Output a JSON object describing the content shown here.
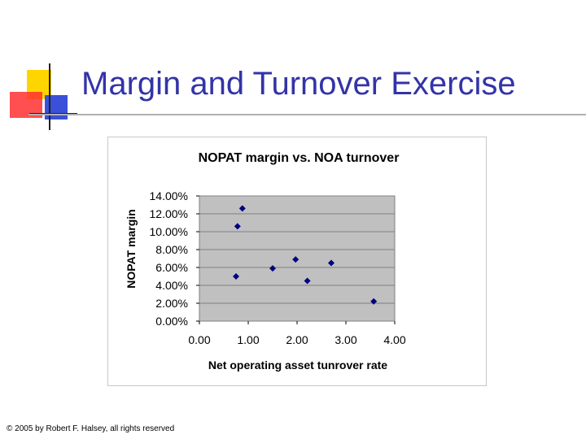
{
  "slide": {
    "title": "Margin and Turnover Exercise",
    "footer": "© 2005 by Robert F. Halsey, all rights reserved",
    "accent_colors": {
      "title": "#3333a8",
      "yellow": "#ffd500",
      "red": "#ff2a2a",
      "blue": "#3a50d8"
    }
  },
  "chart_data": {
    "type": "scatter",
    "title": "NOPAT margin vs. NOA turnover",
    "xlabel": "Net operating asset tunrover rate",
    "ylabel": "NOPAT margin",
    "xlim": [
      0,
      4
    ],
    "ylim": [
      0,
      0.14
    ],
    "x_ticks": [
      "0.00",
      "1.00",
      "2.00",
      "3.00",
      "4.00"
    ],
    "y_ticks": [
      "0.00%",
      "2.00%",
      "4.00%",
      "6.00%",
      "8.00%",
      "10.00%",
      "12.00%",
      "14.00%"
    ],
    "grid": true,
    "plot_background": "#c0c0c0",
    "marker": "diamond",
    "marker_color": "#000080",
    "points": [
      {
        "x": 0.75,
        "y": 0.05
      },
      {
        "x": 0.78,
        "y": 0.106
      },
      {
        "x": 0.88,
        "y": 0.126
      },
      {
        "x": 1.5,
        "y": 0.059
      },
      {
        "x": 1.97,
        "y": 0.069
      },
      {
        "x": 2.21,
        "y": 0.045
      },
      {
        "x": 2.7,
        "y": 0.065
      },
      {
        "x": 3.57,
        "y": 0.022
      }
    ]
  }
}
